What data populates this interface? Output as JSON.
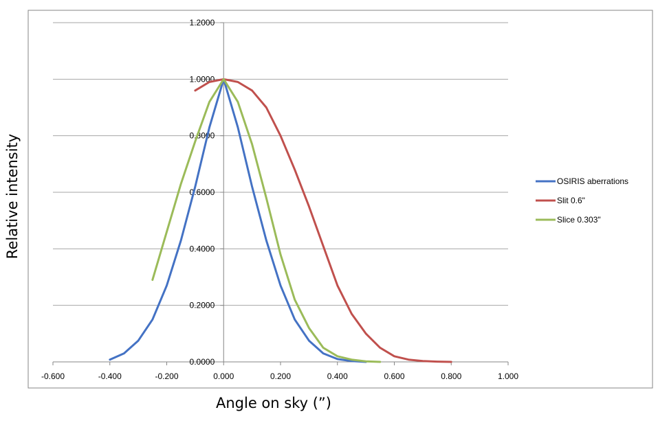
{
  "chart_data": {
    "type": "line",
    "title": "",
    "xlabel": "Angle on sky (”)",
    "ylabel": "Relative intensity",
    "xlim": [
      -0.6,
      1.0
    ],
    "ylim": [
      0.0,
      1.2
    ],
    "x_ticks": [
      "-0.600",
      "-0.400",
      "-0.200",
      "0.000",
      "0.200",
      "0.400",
      "0.600",
      "0.800",
      "1.000"
    ],
    "y_ticks": [
      "0.0000",
      "0.2000",
      "0.4000",
      "0.6000",
      "0.8000",
      "1.0000",
      "1.2000"
    ],
    "grid": "horizontal",
    "legend_position": "right",
    "series": [
      {
        "name": "OSIRIS aberrations",
        "color": "#4472C4",
        "points": [
          [
            -0.4,
            0.008
          ],
          [
            -0.35,
            0.03
          ],
          [
            -0.3,
            0.075
          ],
          [
            -0.25,
            0.15
          ],
          [
            -0.2,
            0.27
          ],
          [
            -0.15,
            0.43
          ],
          [
            -0.1,
            0.62
          ],
          [
            -0.05,
            0.83
          ],
          [
            0.0,
            1.0
          ],
          [
            0.05,
            0.83
          ],
          [
            0.1,
            0.62
          ],
          [
            0.15,
            0.43
          ],
          [
            0.2,
            0.27
          ],
          [
            0.25,
            0.15
          ],
          [
            0.3,
            0.075
          ],
          [
            0.35,
            0.03
          ],
          [
            0.4,
            0.01
          ],
          [
            0.45,
            0.003
          ],
          [
            0.5,
            0.0
          ]
        ]
      },
      {
        "name": "Slit 0.6\"",
        "color": "#C0504D",
        "points": [
          [
            -0.1,
            0.96
          ],
          [
            -0.05,
            0.99
          ],
          [
            0.0,
            1.0
          ],
          [
            0.05,
            0.99
          ],
          [
            0.1,
            0.96
          ],
          [
            0.15,
            0.9
          ],
          [
            0.2,
            0.8
          ],
          [
            0.25,
            0.68
          ],
          [
            0.3,
            0.55
          ],
          [
            0.35,
            0.41
          ],
          [
            0.4,
            0.27
          ],
          [
            0.45,
            0.17
          ],
          [
            0.5,
            0.1
          ],
          [
            0.55,
            0.05
          ],
          [
            0.6,
            0.02
          ],
          [
            0.65,
            0.008
          ],
          [
            0.7,
            0.003
          ],
          [
            0.75,
            0.001
          ],
          [
            0.8,
            0.0
          ]
        ]
      },
      {
        "name": "Slice 0.303\"",
        "color": "#9BBB59",
        "points": [
          [
            -0.25,
            0.29
          ],
          [
            -0.2,
            0.46
          ],
          [
            -0.15,
            0.63
          ],
          [
            -0.1,
            0.78
          ],
          [
            -0.05,
            0.92
          ],
          [
            0.0,
            1.0
          ],
          [
            0.05,
            0.92
          ],
          [
            0.1,
            0.77
          ],
          [
            0.15,
            0.58
          ],
          [
            0.2,
            0.38
          ],
          [
            0.25,
            0.22
          ],
          [
            0.3,
            0.12
          ],
          [
            0.35,
            0.05
          ],
          [
            0.4,
            0.02
          ],
          [
            0.45,
            0.008
          ],
          [
            0.5,
            0.002
          ],
          [
            0.55,
            0.0
          ]
        ]
      }
    ]
  }
}
